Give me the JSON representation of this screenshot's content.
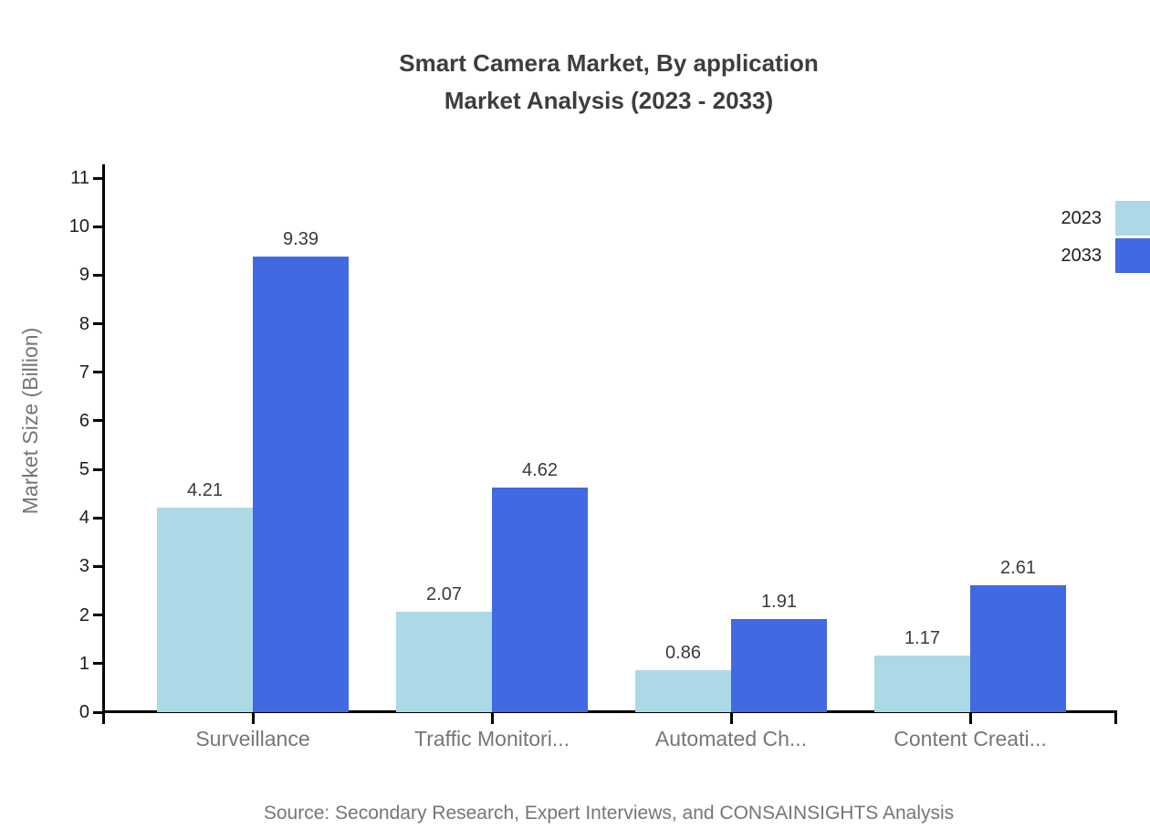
{
  "title": {
    "line1": "Smart Camera Market, By application",
    "line2": "Market Analysis (2023 - 2033)"
  },
  "y_axis_title": "Market Size (Billion)",
  "source_note": "Source: Secondary Research, Expert Interviews, and CONSAINSIGHTS Analysis",
  "legend": {
    "position": "top-right",
    "items": [
      {
        "label": "2023",
        "color": "#ADD8E6"
      },
      {
        "label": "2033",
        "color": "#4169E1"
      }
    ]
  },
  "colors": {
    "series_2023": "#ADD8E6",
    "series_2033": "#4169E1",
    "axis": "#000000",
    "title_text": "#3d3d3d",
    "tick_label_text": "#1c1c1c",
    "muted_text": "#767676",
    "background": "#ffffff"
  },
  "chart_data": {
    "type": "bar",
    "title": "Smart Camera Market, By application Market Analysis (2023 - 2033)",
    "categories": [
      "Surveillance",
      "Traffic Monitori...",
      "Automated Ch...",
      "Content Creati..."
    ],
    "series": [
      {
        "name": "2023",
        "color": "#ADD8E6",
        "values": [
          4.21,
          2.07,
          0.86,
          1.17
        ]
      },
      {
        "name": "2033",
        "color": "#4169E1",
        "values": [
          9.39,
          4.62,
          1.91,
          2.61
        ]
      }
    ],
    "xlabel": "",
    "ylabel": "Market Size (Billion)",
    "ylim": [
      0,
      11
    ],
    "ytick_interval": 1,
    "yticks": [
      0,
      1,
      2,
      3,
      4,
      5,
      6,
      7,
      8,
      9,
      10,
      11
    ],
    "grid": false,
    "data_labels": true,
    "data_label_format": "0.00",
    "legend_position": "top-right"
  }
}
